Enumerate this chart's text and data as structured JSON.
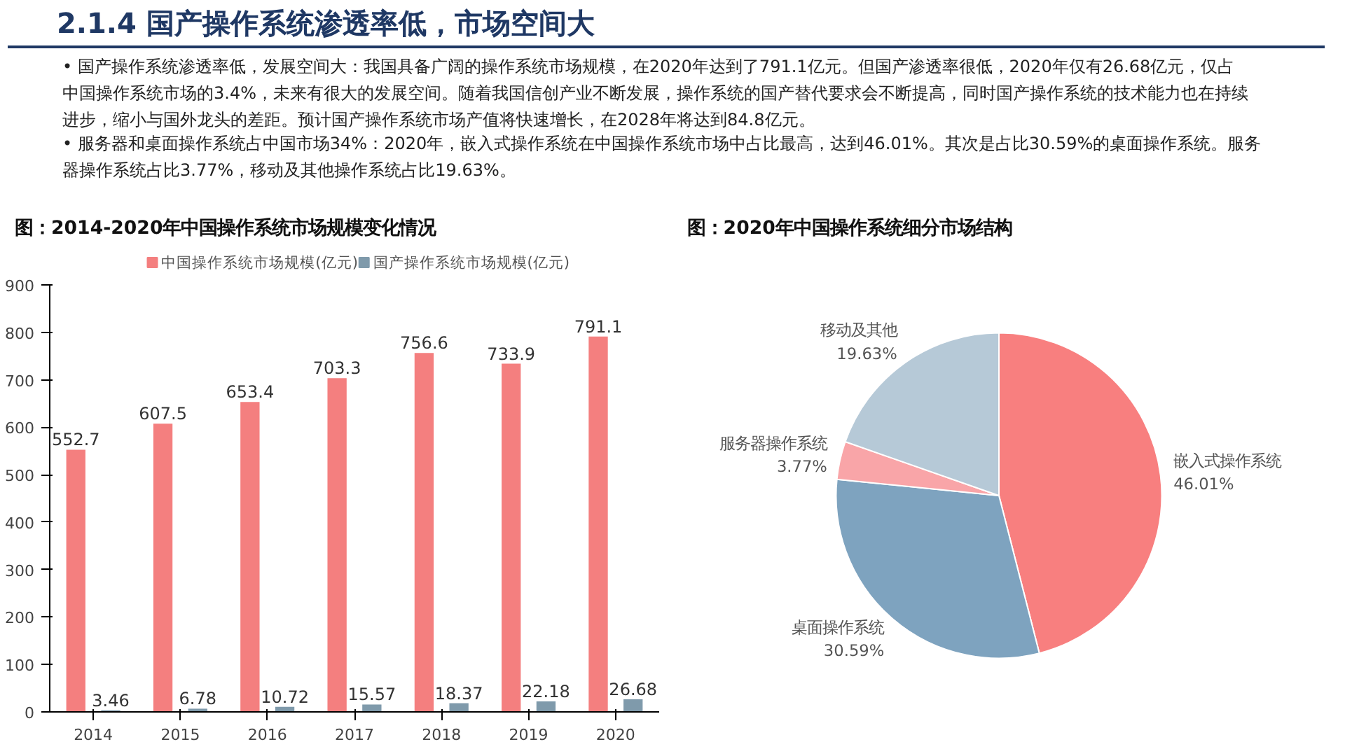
{
  "chart_data": [
    {
      "type": "other",
      "title": "2.1.4 国产操作系统渗透率低，市场空间大",
      "annotations": [
        "• 国产操作系统渗透率低，发展空间大：我国具备广阔的操作系统市场规模，在2020年达到了791.1亿元。但国产渗透率很低，2020年仅有26.68亿元，仅占中国操作系统市场的3.4%，未来有很大的发展空间。随着我国信创产业不断发展，操作系统的国产替代要求会不断提高，同时国产操作系统的技术能力也在持续进步，缩小与国外龙头的差距。预计国产操作系统市场产值将快速增长，在2028年将达到84.8亿元。",
        "• 服务器和桌面操作系统占中国市场34%：2020年，嵌入式操作系统在中国操作系统市场中占比最高，达到46.01%。其次是占比30.59%的桌面操作系统。服务器操作系统占比3.77%，移动及其他操作系统占比19.63%。"
      ]
    },
    {
      "type": "bar",
      "title": "图：2014-2020年中国操作系统市场规模变化情况",
      "categories": [
        "2014",
        "2015",
        "2016",
        "2017",
        "2018",
        "2019",
        "2020"
      ],
      "series": [
        {
          "name": "中国操作系统市场规模(亿元)",
          "color": "#f47f7f",
          "values": [
            552.7,
            607.5,
            653.4,
            703.3,
            756.6,
            733.9,
            791.1
          ]
        },
        {
          "name": "国产操作系统市场规模(亿元)",
          "color": "#7f9aab",
          "values": [
            3.46,
            6.78,
            10.72,
            15.57,
            18.37,
            22.18,
            26.68
          ]
        }
      ],
      "ylim": [
        0,
        900
      ],
      "yticks": [
        0,
        100,
        200,
        300,
        400,
        500,
        600,
        700,
        800,
        900
      ],
      "data_labels": true,
      "legend": "top",
      "grid": false
    },
    {
      "type": "pie",
      "title": "图：2020年中国操作系统细分市场结构",
      "categories": [
        "嵌入式操作系统",
        "桌面操作系统",
        "服务器操作系统",
        "移动及其他"
      ],
      "values": [
        46.01,
        30.59,
        3.77,
        19.63
      ],
      "colors": [
        "#f87f7f",
        "#7ea3bf",
        "#f9a5a8",
        "#b6c9d7"
      ],
      "value_labels": [
        "46.01%",
        "30.59%",
        "3.77%",
        "19.63%"
      ]
    }
  ]
}
